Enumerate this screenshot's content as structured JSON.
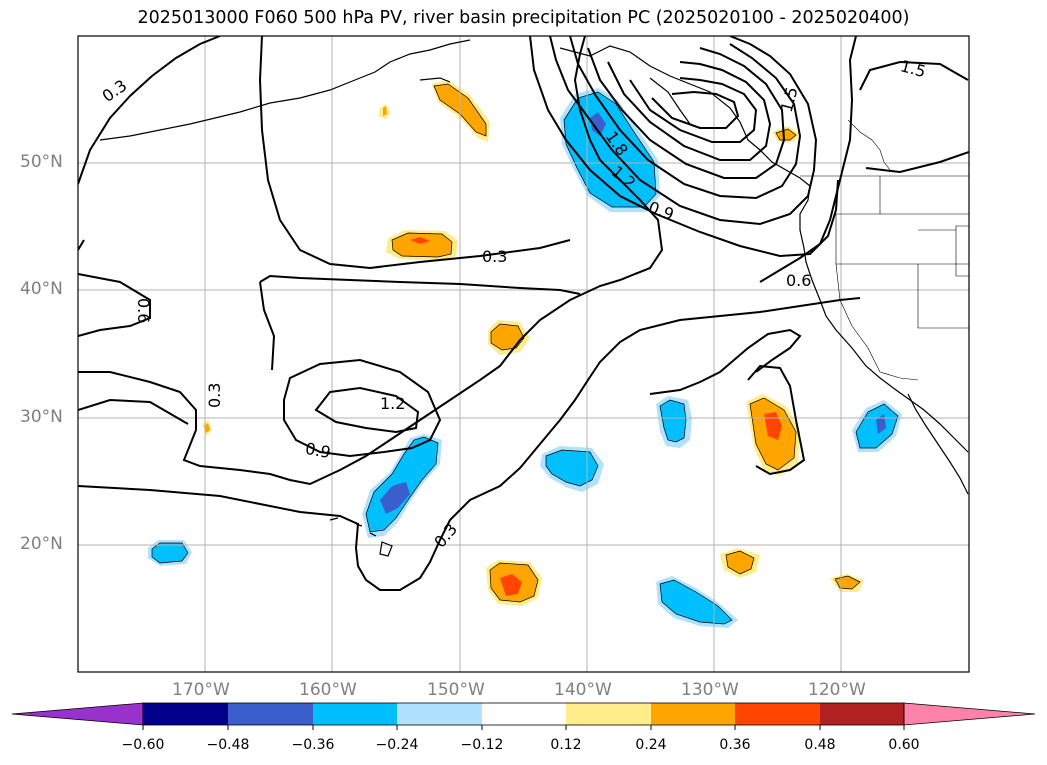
{
  "title": "2025013000 F060 500 hPa PV, river basin precipitation PC (2025020100 - 2025020400)",
  "lat_labels": [
    "50°N",
    "40°N",
    "30°N",
    "20°N"
  ],
  "lon_labels": [
    "170°W",
    "160°W",
    "150°W",
    "140°W",
    "130°W",
    "120°W"
  ],
  "map_extent": {
    "lon_min": -180,
    "lon_max": -110,
    "lat_min": 10,
    "lat_max": 60
  },
  "contour_labels": [
    "0.3",
    "0.3",
    "0.3",
    "0.3",
    "0.6",
    "0.6",
    "0.9",
    "0.9",
    "1.2",
    "1.2",
    "1.5",
    "1.8"
  ],
  "colorbar": {
    "ticks": [
      "−0.60",
      "−0.48",
      "−0.36",
      "−0.24",
      "−0.12",
      "0.12",
      "0.24",
      "0.36",
      "0.48",
      "0.60"
    ],
    "colors": [
      "#9932cc",
      "#00008b",
      "#3a5fcd",
      "#00bfff",
      "#b0e2ff",
      "#ffffff",
      "#ffec8b",
      "#ffa500",
      "#ff4500",
      "#b22222",
      "#ff82ab"
    ]
  }
}
